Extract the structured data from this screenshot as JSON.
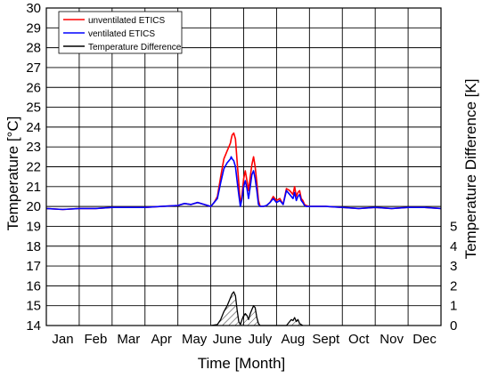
{
  "chart_data": {
    "type": "line",
    "xlabel": "Time [Month]",
    "ylabel": "Temperature [°C]",
    "y2label": "Temperature Difference [K]",
    "months": [
      "Jan",
      "Feb",
      "Mar",
      "Apr",
      "May",
      "June",
      "July",
      "Aug",
      "Sept",
      "Oct",
      "Nov",
      "Dec"
    ],
    "xlim": [
      0,
      12
    ],
    "ylim": [
      14,
      30
    ],
    "yticks": [
      14,
      15,
      16,
      17,
      18,
      19,
      20,
      21,
      22,
      23,
      24,
      25,
      26,
      27,
      28,
      29,
      30
    ],
    "y2ticks": [
      0,
      1,
      2,
      3,
      4,
      5
    ],
    "grid": true,
    "legend_position": "top-left",
    "series": [
      {
        "name": "unventilated ETICS",
        "color": "#ff0000",
        "x": [
          0,
          0.5,
          1,
          1.5,
          2,
          2.5,
          3,
          3.5,
          4,
          4.2,
          4.4,
          4.6,
          4.8,
          5.0,
          5.1,
          5.2,
          5.3,
          5.4,
          5.5,
          5.55,
          5.6,
          5.62,
          5.65,
          5.7,
          5.75,
          5.8,
          5.85,
          5.9,
          5.95,
          6.0,
          6.05,
          6.1,
          6.15,
          6.2,
          6.25,
          6.3,
          6.35,
          6.4,
          6.45,
          6.5,
          6.6,
          6.7,
          6.8,
          6.9,
          7.0,
          7.1,
          7.2,
          7.3,
          7.4,
          7.5,
          7.55,
          7.6,
          7.65,
          7.7,
          7.75,
          7.8,
          7.85,
          7.9,
          8.0,
          8.1,
          8.5,
          9,
          9.5,
          10,
          10.5,
          11,
          11.5,
          12
        ],
        "y": [
          19.9,
          19.85,
          19.9,
          19.9,
          19.95,
          19.95,
          19.95,
          20.0,
          20.05,
          20.15,
          20.1,
          20.2,
          20.1,
          20.0,
          20.2,
          20.5,
          21.5,
          22.4,
          22.8,
          23.0,
          23.2,
          23.4,
          23.6,
          23.7,
          23.4,
          22.3,
          21.2,
          20.1,
          20.6,
          21.4,
          21.8,
          21.3,
          20.8,
          21.5,
          22.1,
          22.5,
          22.0,
          21.2,
          20.3,
          20.0,
          20.0,
          20.05,
          20.2,
          20.5,
          20.3,
          20.4,
          20.1,
          20.9,
          20.8,
          20.6,
          21.0,
          20.5,
          20.7,
          20.8,
          20.4,
          20.3,
          20.1,
          20.05,
          20.0,
          20.0,
          20.0,
          19.95,
          19.9,
          19.95,
          19.9,
          19.95,
          19.95,
          19.9
        ]
      },
      {
        "name": "ventilated ETICS",
        "color": "#0000ff",
        "x": [
          0,
          0.5,
          1,
          1.5,
          2,
          2.5,
          3,
          3.5,
          4,
          4.2,
          4.4,
          4.6,
          4.8,
          5.0,
          5.1,
          5.2,
          5.3,
          5.4,
          5.5,
          5.55,
          5.6,
          5.62,
          5.65,
          5.7,
          5.75,
          5.8,
          5.85,
          5.9,
          5.95,
          6.0,
          6.05,
          6.1,
          6.15,
          6.2,
          6.25,
          6.3,
          6.35,
          6.4,
          6.45,
          6.5,
          6.6,
          6.7,
          6.8,
          6.9,
          7.0,
          7.1,
          7.2,
          7.3,
          7.4,
          7.5,
          7.55,
          7.6,
          7.65,
          7.7,
          7.75,
          7.8,
          7.85,
          7.9,
          8.0,
          8.1,
          8.5,
          9,
          9.5,
          10,
          10.5,
          11,
          11.5,
          12
        ],
        "y": [
          19.9,
          19.85,
          19.9,
          19.9,
          19.95,
          19.95,
          19.95,
          20.0,
          20.05,
          20.15,
          20.1,
          20.2,
          20.1,
          20.0,
          20.2,
          20.4,
          21.2,
          21.9,
          22.2,
          22.3,
          22.4,
          22.5,
          22.4,
          22.3,
          22.0,
          21.3,
          20.6,
          20.0,
          20.4,
          21.0,
          21.3,
          20.9,
          20.4,
          21.0,
          21.6,
          21.8,
          21.4,
          20.8,
          20.1,
          20.0,
          20.0,
          20.05,
          20.2,
          20.4,
          20.2,
          20.3,
          20.1,
          20.8,
          20.6,
          20.4,
          20.7,
          20.3,
          20.5,
          20.6,
          20.3,
          20.2,
          20.05,
          20.0,
          20.0,
          20.0,
          20.0,
          19.95,
          19.9,
          19.95,
          19.9,
          19.95,
          19.95,
          19.9
        ]
      },
      {
        "name": "Temperature Difference",
        "color": "#000000",
        "axis": "right",
        "hatched": true,
        "x": [
          5.0,
          5.2,
          5.3,
          5.4,
          5.5,
          5.6,
          5.65,
          5.7,
          5.75,
          5.8,
          5.85,
          5.9,
          5.95,
          6.0,
          6.05,
          6.1,
          6.15,
          6.2,
          6.25,
          6.3,
          6.35,
          6.4,
          6.45,
          6.5,
          6.6,
          7.3,
          7.4,
          7.45,
          7.5,
          7.55,
          7.6,
          7.65,
          7.7,
          7.8
        ],
        "y": [
          0.0,
          0.05,
          0.3,
          0.7,
          1.0,
          1.4,
          1.6,
          1.7,
          1.5,
          0.8,
          0.2,
          0.05,
          0.3,
          0.5,
          0.6,
          0.5,
          0.3,
          0.6,
          0.8,
          1.0,
          0.9,
          0.4,
          0.1,
          0.0,
          0.0,
          0.0,
          0.2,
          0.3,
          0.25,
          0.4,
          0.2,
          0.3,
          0.1,
          0.0
        ]
      }
    ]
  }
}
